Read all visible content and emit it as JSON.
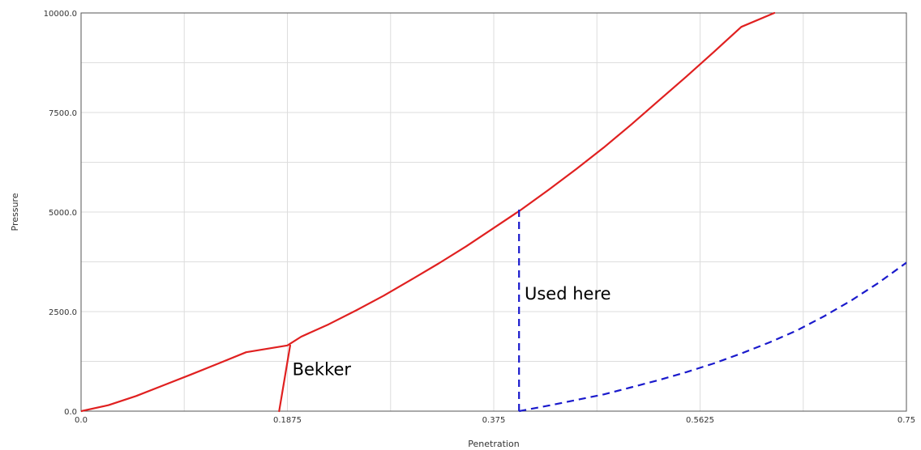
{
  "chart_data": {
    "type": "line",
    "title": "",
    "xlabel": "Penetration",
    "ylabel": "Pressure",
    "xlim": [
      0.0,
      0.75
    ],
    "ylim": [
      0.0,
      10000.0
    ],
    "x_ticks": [
      0.0,
      0.1875,
      0.375,
      0.5625,
      0.75
    ],
    "x_tick_labels": [
      "0.0",
      "0.1875",
      "0.375",
      "0.5625",
      "0.75"
    ],
    "y_ticks": [
      0.0,
      2500.0,
      5000.0,
      7500.0,
      10000.0
    ],
    "y_tick_labels": [
      "0.0",
      "2500.0",
      "5000.0",
      "7500.0",
      "10000.0"
    ],
    "grid": true,
    "colors": {
      "red": "#e02020",
      "blue": "#1a1acc",
      "grid": "#dddddd",
      "axis": "#555555"
    },
    "series": [
      {
        "style": "solid",
        "color": "#e02020",
        "x": [
          0.0,
          0.025,
          0.05,
          0.075,
          0.1,
          0.125,
          0.15,
          0.1875,
          0.2,
          0.225,
          0.25,
          0.275,
          0.3,
          0.325,
          0.35,
          0.375,
          0.4,
          0.425,
          0.45,
          0.475,
          0.5,
          0.525,
          0.55,
          0.575,
          0.6,
          0.63
        ],
        "y": [
          0,
          150,
          380,
          650,
          920,
          1200,
          1480,
          1650,
          1870,
          2180,
          2530,
          2900,
          3300,
          3710,
          4140,
          4600,
          5060,
          5560,
          6080,
          6620,
          7200,
          7800,
          8400,
          9020,
          9650,
          10000
        ]
      },
      {
        "style": "solid",
        "color": "#e02020",
        "x": [
          0.18,
          0.19
        ],
        "y": [
          0,
          1650
        ]
      },
      {
        "style": "dashed",
        "color": "#1a1acc",
        "x": [
          0.398,
          0.398
        ],
        "y": [
          5060,
          0
        ]
      },
      {
        "style": "dashed",
        "color": "#1a1acc",
        "x": [
          0.398,
          0.425,
          0.45,
          0.475,
          0.5,
          0.525,
          0.55,
          0.575,
          0.6,
          0.625,
          0.65,
          0.675,
          0.7,
          0.725,
          0.75
        ],
        "y": [
          0,
          140,
          280,
          420,
          600,
          780,
          980,
          1200,
          1450,
          1720,
          2020,
          2380,
          2780,
          3230,
          3730
        ]
      }
    ],
    "annotations": [
      {
        "text": "Bekker",
        "x": 0.192,
        "y": 900
      },
      {
        "text": "Used here",
        "x": 0.403,
        "y": 2800
      }
    ]
  }
}
